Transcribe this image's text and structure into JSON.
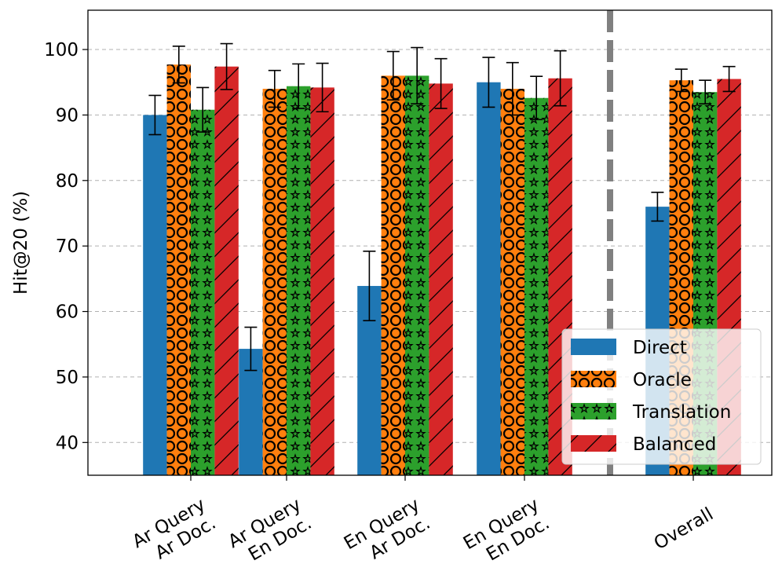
{
  "chart_data": {
    "type": "bar",
    "title": "",
    "xlabel": "",
    "ylabel": "Hit@20 (%)",
    "ylim": [
      35,
      106
    ],
    "yticks": [
      40,
      50,
      60,
      70,
      80,
      90,
      100
    ],
    "grid": "y dashed",
    "legend_position": "lower-right",
    "separator": "dashed vertical line between En Query / En Doc. and Overall",
    "categories": [
      {
        "line1": "Ar Query",
        "line2": "Ar Doc."
      },
      {
        "line1": "Ar Query",
        "line2": "En Doc."
      },
      {
        "line1": "En Query",
        "line2": "Ar Doc."
      },
      {
        "line1": "En Query",
        "line2": "En Doc."
      },
      {
        "line1": "Overall",
        "line2": ""
      }
    ],
    "series": [
      {
        "name": "Direct",
        "color": "#1f77b4",
        "pattern": "none",
        "values": [
          90.0,
          54.3,
          63.9,
          95.0,
          76.0
        ],
        "errors": [
          3.0,
          3.3,
          5.3,
          3.8,
          2.2
        ]
      },
      {
        "name": "Oracle",
        "color": "#ff7f0e",
        "pattern": "circles",
        "values": [
          97.7,
          94.0,
          96.0,
          94.0,
          95.3
        ],
        "errors": [
          2.8,
          2.8,
          3.7,
          4.0,
          1.7
        ]
      },
      {
        "name": "Translation",
        "color": "#2ca02c",
        "pattern": "stars",
        "values": [
          90.8,
          94.4,
          96.0,
          92.6,
          93.5
        ],
        "errors": [
          3.4,
          3.4,
          4.3,
          3.3,
          1.8
        ]
      },
      {
        "name": "Balanced",
        "color": "#d62728",
        "pattern": "hatch",
        "values": [
          97.4,
          94.2,
          94.8,
          95.6,
          95.5
        ],
        "errors": [
          3.5,
          3.7,
          3.8,
          4.2,
          1.9
        ]
      }
    ]
  }
}
